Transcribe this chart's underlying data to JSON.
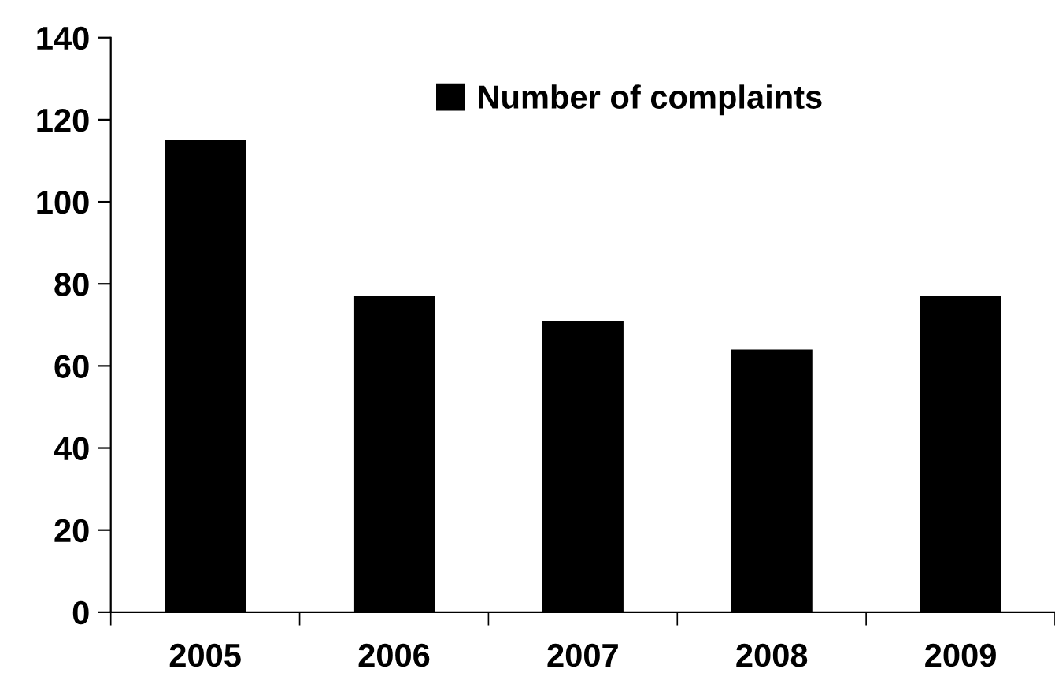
{
  "chart_data": {
    "type": "bar",
    "categories": [
      "2005",
      "2006",
      "2007",
      "2008",
      "2009"
    ],
    "series": [
      {
        "name": "Number of complaints",
        "color": "#000000",
        "values": [
          115,
          77,
          71,
          64,
          77
        ]
      }
    ],
    "ylim": [
      0,
      140
    ],
    "yticks": [
      0,
      20,
      40,
      60,
      80,
      100,
      120,
      140
    ],
    "grid": false,
    "legend": "top"
  }
}
